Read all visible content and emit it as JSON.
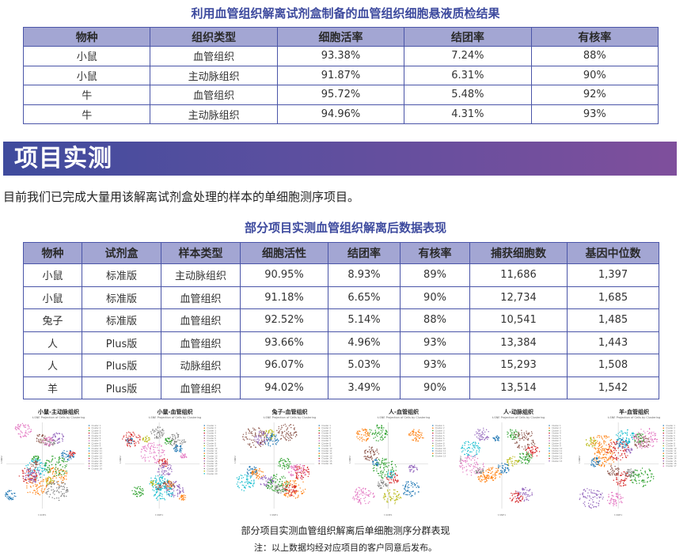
{
  "table1": {
    "title": "利用血管组织解离试剂盒制备的血管组织细胞悬液质检结果",
    "headers": [
      "物种",
      "组织类型",
      "细胞活率",
      "结团率",
      "有核率"
    ],
    "rows": [
      [
        "小鼠",
        "血管组织",
        "93.38%",
        "7.24%",
        "88%"
      ],
      [
        "小鼠",
        "主动脉组织",
        "91.87%",
        "6.31%",
        "90%"
      ],
      [
        "牛",
        "血管组织",
        "95.72%",
        "5.48%",
        "92%"
      ],
      [
        "牛",
        "主动脉组织",
        "94.96%",
        "4.31%",
        "93%"
      ]
    ]
  },
  "section": {
    "title": "项目实测",
    "intro": "目前我们已完成大量用该解离试剂盒处理的样本的单细胞测序项目。"
  },
  "table2": {
    "title": "部分项目实测血管组织解离后数据表现",
    "headers": [
      "物种",
      "试剂盒",
      "样本类型",
      "细胞活性",
      "结团率",
      "有核率",
      "捕获细胞数",
      "基因中位数"
    ],
    "rows": [
      [
        "小鼠",
        "标准版",
        "主动脉组织",
        "90.95%",
        "8.93%",
        "89%",
        "11,686",
        "1,397"
      ],
      [
        "小鼠",
        "标准版",
        "血管组织",
        "91.18%",
        "6.65%",
        "90%",
        "12,734",
        "1,685"
      ],
      [
        "兔子",
        "标准版",
        "血管组织",
        "92.52%",
        "5.14%",
        "88%",
        "10,541",
        "1,485"
      ],
      [
        "人",
        "Plus版",
        "血管组织",
        "93.66%",
        "4.96%",
        "93%",
        "13,384",
        "1,443"
      ],
      [
        "人",
        "Plus版",
        "动脉组织",
        "96.07%",
        "5.03%",
        "93%",
        "15,293",
        "1,508"
      ],
      [
        "羊",
        "Plus版",
        "血管组织",
        "94.02%",
        "3.49%",
        "90%",
        "13,514",
        "1,542"
      ]
    ]
  },
  "plots": {
    "subtitle": "t-SNE Projection of Cells by Clustering",
    "xlabel": "t-SNE1",
    "ylabel": "t-SNE2",
    "items": [
      {
        "title": "小鼠-主动脉组织",
        "clusters": 18
      },
      {
        "title": "小鼠-血管组织",
        "clusters": 20
      },
      {
        "title": "兔子-血管组织",
        "clusters": 16
      },
      {
        "title": "人-血管组织",
        "clusters": 13
      },
      {
        "title": "人-动脉组织",
        "clusters": 15
      },
      {
        "title": "羊-血管组织",
        "clusters": 17
      }
    ],
    "colors": [
      "#1f77b4",
      "#ff7f0e",
      "#2ca02c",
      "#d62728",
      "#9467bd",
      "#8c564b",
      "#e377c2",
      "#7f7f7f",
      "#bcbd22",
      "#17becf"
    ]
  },
  "caption": "部分项目实测血管组织解离后单细胞测序分群表现",
  "note": "注：以上数据均经对应项目的客户同意后发布。"
}
